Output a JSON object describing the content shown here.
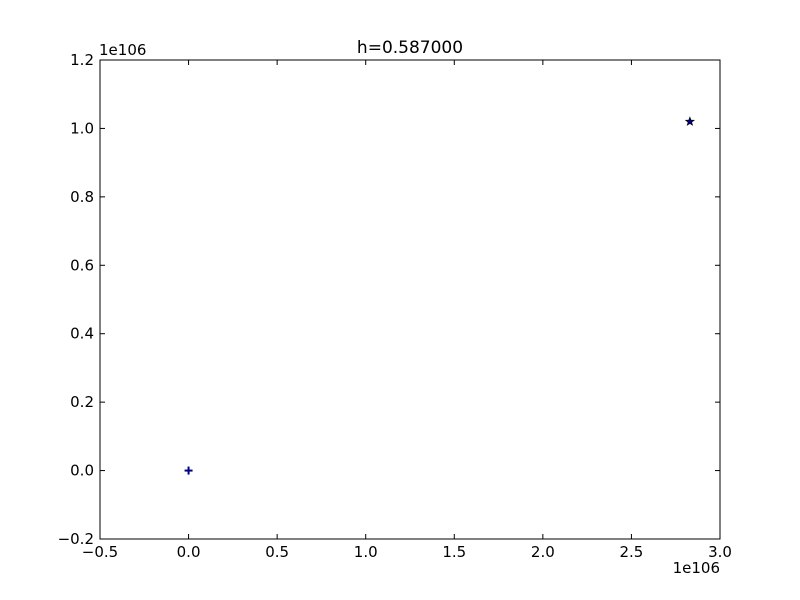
{
  "chart_data": {
    "type": "scatter",
    "title": "h=0.587000",
    "xlabel": "",
    "ylabel": "",
    "xlim": [
      -0.5,
      3.0
    ],
    "ylim": [
      -0.2,
      1.2
    ],
    "x_ticks": [
      -0.5,
      0.0,
      0.5,
      1.0,
      1.5,
      2.0,
      2.5,
      3.0
    ],
    "x_tick_labels": [
      "−0.5",
      "0.0",
      "0.5",
      "1.0",
      "1.5",
      "2.0",
      "2.5",
      "3.0"
    ],
    "y_ticks": [
      -0.2,
      0.0,
      0.2,
      0.4,
      0.6,
      0.8,
      1.0,
      1.2
    ],
    "y_tick_labels": [
      "−0.2",
      "0.0",
      "0.2",
      "0.4",
      "0.6",
      "0.8",
      "1.0",
      "1.2"
    ],
    "x_offset_label": "1e106",
    "y_offset_label": "1e106",
    "grid": false,
    "series": [
      {
        "marker": "plus",
        "color": "#000080",
        "points": [
          {
            "x": 0.0,
            "y": 0.0
          }
        ]
      },
      {
        "marker": "star",
        "color": "#000080",
        "points": [
          {
            "x": 2.83,
            "y": 1.02
          }
        ]
      }
    ]
  }
}
